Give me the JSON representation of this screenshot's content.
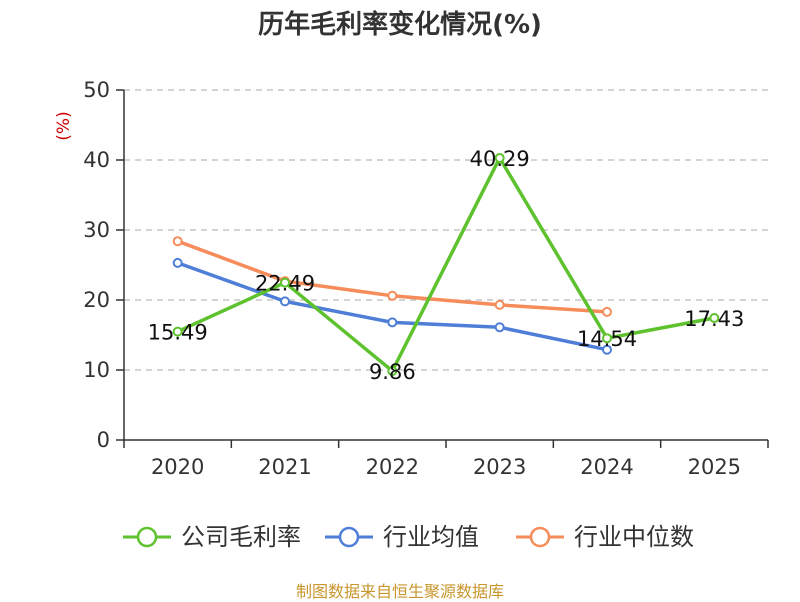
{
  "title": "历年毛利率变化情况(%)",
  "source": "制图数据来自恒生聚源数据库",
  "colors": {
    "company": "#5ec22e",
    "industry_avg": "#4f7ed8",
    "industry_median": "#f58c5a",
    "unit": "#cc0000",
    "source": "#c8962c",
    "grid": "#bbbbbb",
    "axis": "#333333"
  },
  "chart_data": {
    "type": "line",
    "title": "历年毛利率变化情况(%)",
    "ylabel": "(%)",
    "xlabel": "",
    "categories": [
      "2020",
      "2021",
      "2022",
      "2023",
      "2024",
      "2025"
    ],
    "ylim": [
      0,
      50
    ],
    "yticks": [
      0,
      10,
      20,
      30,
      40,
      50
    ],
    "grid": true,
    "legend_position": "bottom",
    "series": [
      {
        "name": "公司毛利率",
        "values": [
          15.49,
          22.49,
          9.86,
          40.29,
          14.54,
          17.43
        ],
        "labels": [
          "15.49",
          "22.49",
          "9.86",
          "40.29",
          "14.54",
          "17.43"
        ]
      },
      {
        "name": "行业均值",
        "values": [
          25.3,
          19.8,
          16.8,
          16.1,
          12.9,
          null
        ]
      },
      {
        "name": "行业中位数",
        "values": [
          28.4,
          22.7,
          20.6,
          19.3,
          18.3,
          null
        ]
      }
    ]
  }
}
